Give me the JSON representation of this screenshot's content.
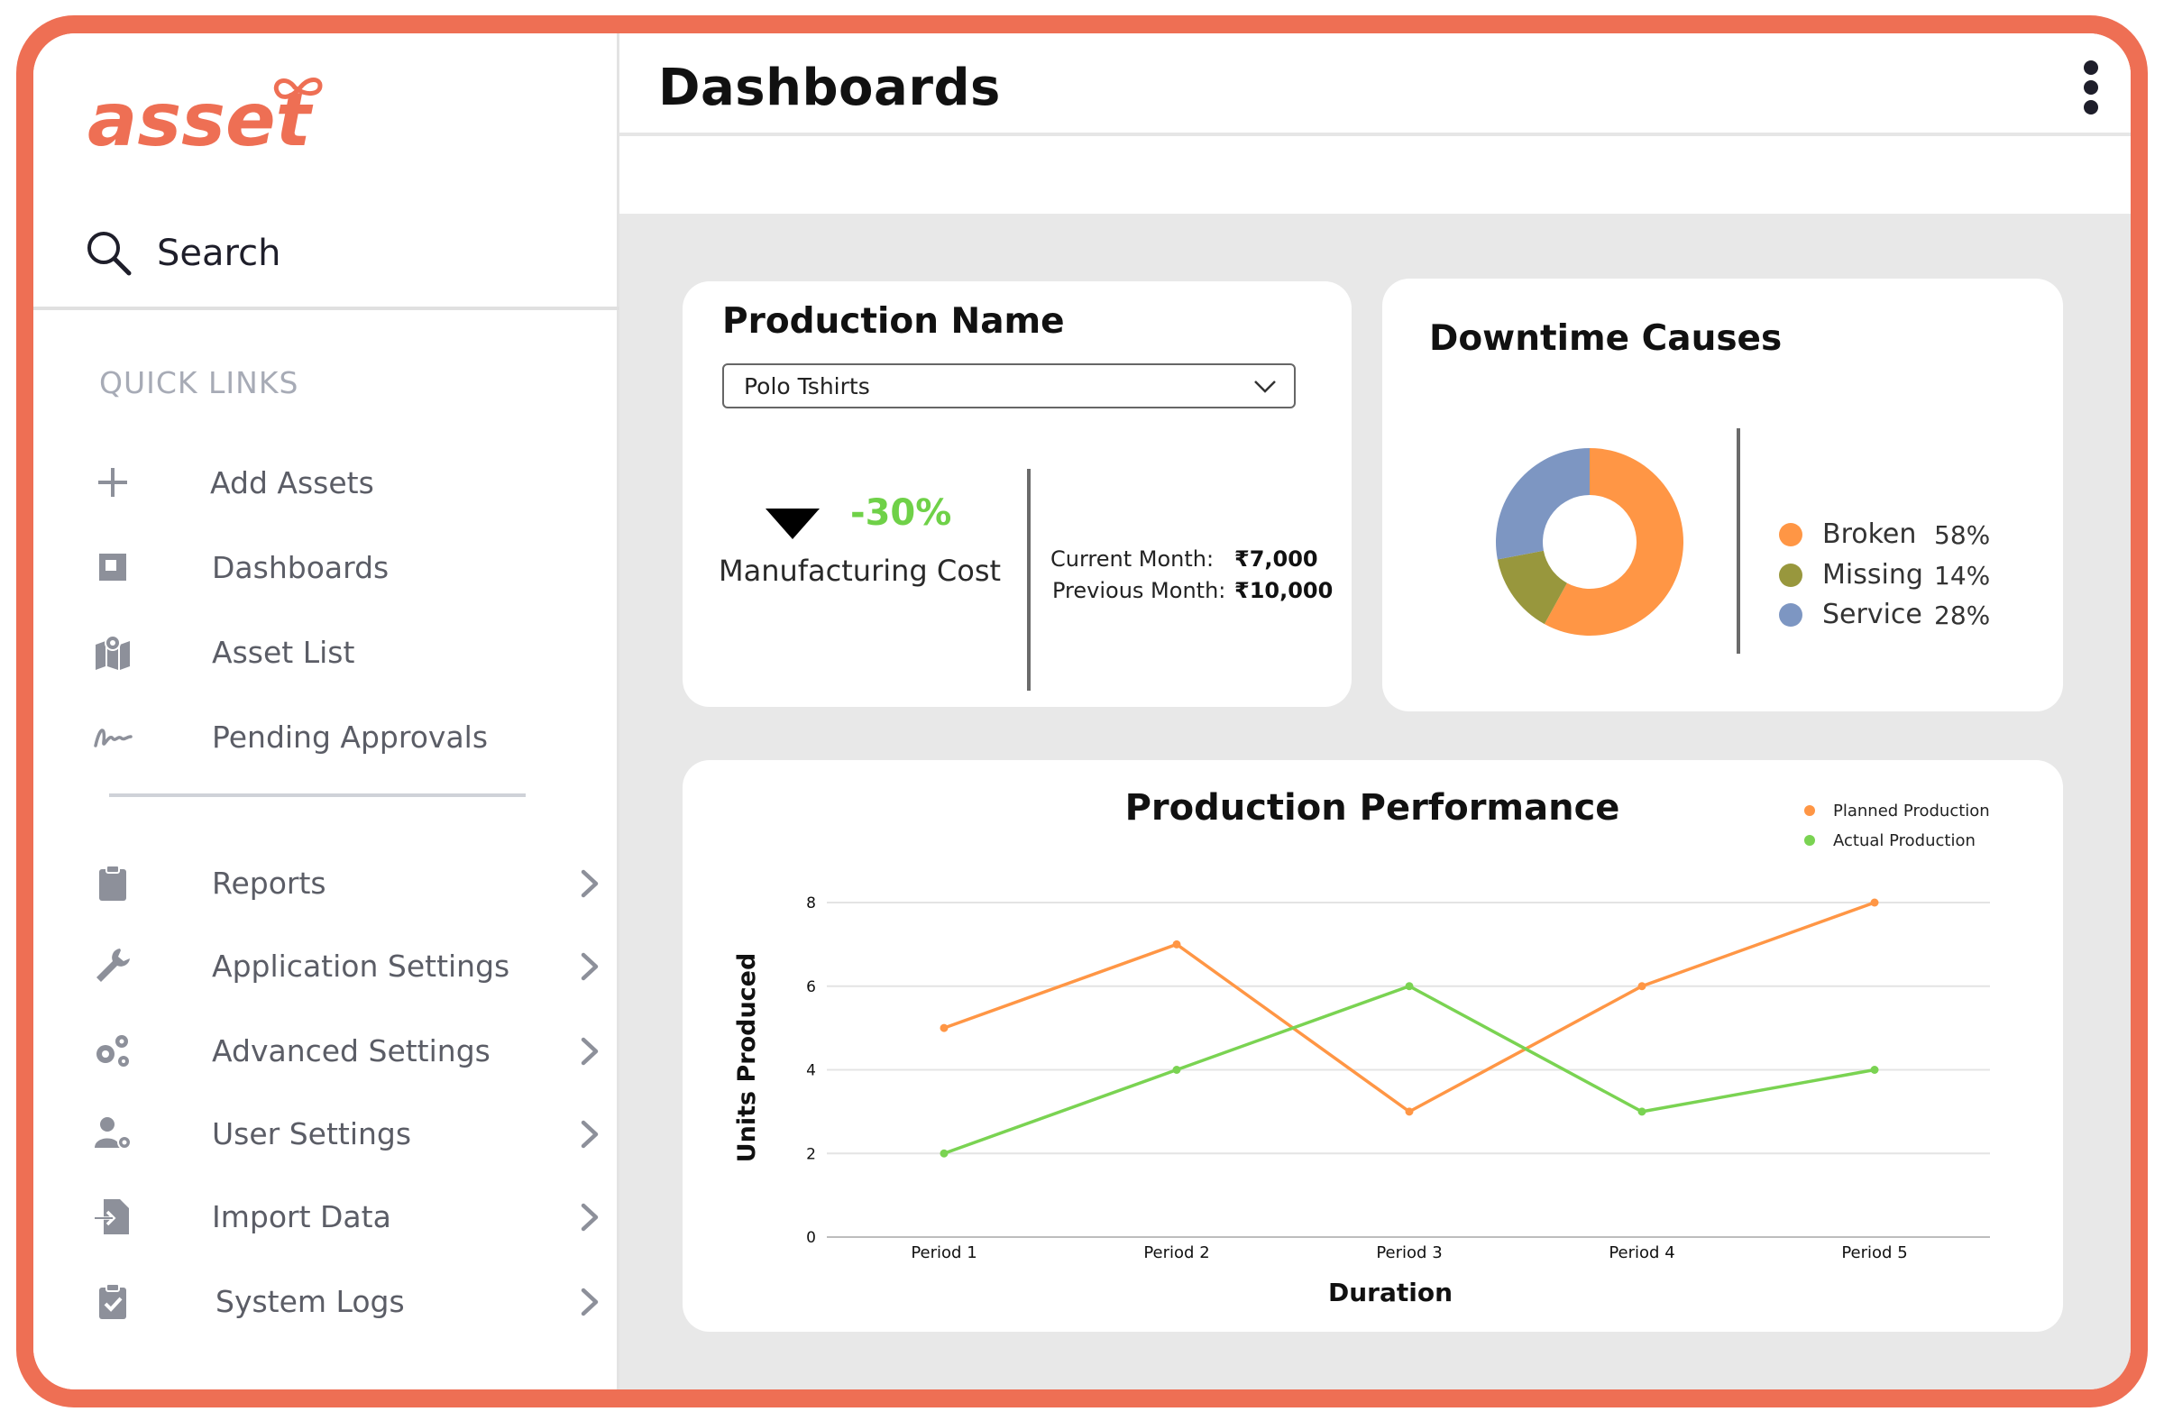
{
  "sidebar": {
    "logo_text": "asset",
    "search_label": "Search",
    "quick_links_label": "QUICK LINKS",
    "quick_links": [
      {
        "label": "Add Assets",
        "icon": "plus-icon"
      },
      {
        "label": "Dashboards",
        "icon": "dashboard-icon"
      },
      {
        "label": "Asset List",
        "icon": "map-pin-icon"
      },
      {
        "label": "Pending Approvals",
        "icon": "signature-icon"
      }
    ],
    "menu": [
      {
        "label": "Reports",
        "icon": "clipboard-icon"
      },
      {
        "label": "Application Settings",
        "icon": "wrench-icon"
      },
      {
        "label": "Advanced Settings",
        "icon": "gears-icon"
      },
      {
        "label": "User Settings",
        "icon": "user-gear-icon"
      },
      {
        "label": "Import Data",
        "icon": "file-import-icon"
      },
      {
        "label": "System Logs",
        "icon": "clipboard-check-icon"
      }
    ]
  },
  "header": {
    "title": "Dashboards",
    "menu_icon": "kebab-menu-icon"
  },
  "production_card": {
    "title": "Production Name",
    "selected_product": "Polo Tshirts",
    "change_percent": "-30%",
    "metric_label": "Manufacturing Cost",
    "current_month_label": "Current Month:",
    "current_month_value": "₹7,000",
    "previous_month_label": "Previous Month:",
    "previous_month_value": "₹10,000",
    "colors": {
      "positive": "#6fd148"
    }
  },
  "downtime_card": {
    "title": "Downtime Causes",
    "legend": [
      {
        "label": "Broken",
        "value": "58%",
        "color": "#ff9645"
      },
      {
        "label": "Missing",
        "value": "14%",
        "color": "#98973d"
      },
      {
        "label": "Service",
        "value": "28%",
        "color": "#7d96c2"
      }
    ]
  },
  "chart_data": [
    {
      "type": "pie",
      "title": "Downtime Causes",
      "donut": true,
      "categories": [
        "Broken",
        "Missing",
        "Service"
      ],
      "values": [
        58,
        14,
        28
      ],
      "colors": [
        "#ff9645",
        "#98973d",
        "#7d96c2"
      ]
    },
    {
      "type": "line",
      "title": "Production Performance",
      "xlabel": "Duration",
      "ylabel": "Units Produced",
      "categories": [
        "Period 1",
        "Period 2",
        "Period 3",
        "Period 4",
        "Period 5"
      ],
      "ylim": [
        0,
        8
      ],
      "yticks": [
        0,
        2,
        4,
        6,
        8
      ],
      "grid": true,
      "legend_position": "top-right",
      "series": [
        {
          "name": "Planned Production",
          "values": [
            5,
            7,
            3,
            6,
            8
          ],
          "color": "#ff9645"
        },
        {
          "name": "Actual Production",
          "values": [
            2,
            4,
            6,
            3,
            4
          ],
          "color": "#7ad352"
        }
      ]
    }
  ]
}
